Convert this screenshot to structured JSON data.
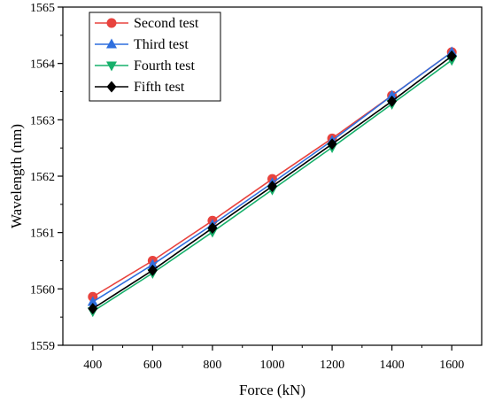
{
  "chart_data": {
    "type": "line",
    "title": "",
    "xlabel": "Force (kN)",
    "ylabel": "Wavelength (nm)",
    "x": [
      400,
      600,
      800,
      1000,
      1200,
      1400,
      1600
    ],
    "xlim": [
      300,
      1700
    ],
    "ylim": [
      1559,
      1565
    ],
    "xticks": [
      400,
      600,
      800,
      1000,
      1200,
      1400,
      1600
    ],
    "yticks": [
      1559,
      1560,
      1561,
      1562,
      1563,
      1564,
      1565
    ],
    "grid": false,
    "legend_position": "top-left",
    "series": [
      {
        "name": "Second test",
        "color": "#e8433e",
        "marker": "circle",
        "values": [
          1559.86,
          1560.5,
          1561.21,
          1561.95,
          1562.67,
          1563.43,
          1564.2
        ]
      },
      {
        "name": "Third test",
        "color": "#2f6fde",
        "marker": "triangle-up",
        "values": [
          1559.77,
          1560.43,
          1561.14,
          1561.88,
          1562.63,
          1563.43,
          1564.2
        ]
      },
      {
        "name": "Fourth test",
        "color": "#17b06b",
        "marker": "triangle-down",
        "values": [
          1559.6,
          1560.28,
          1561.01,
          1561.76,
          1562.51,
          1563.28,
          1564.06
        ]
      },
      {
        "name": "Fifth test",
        "color": "#000000",
        "marker": "diamond",
        "values": [
          1559.65,
          1560.33,
          1561.08,
          1561.82,
          1562.57,
          1563.33,
          1564.13
        ]
      }
    ]
  }
}
